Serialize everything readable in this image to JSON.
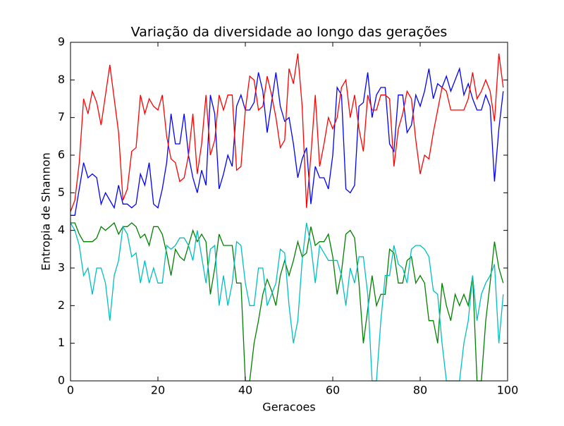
{
  "chart_data": {
    "type": "line",
    "title": "Variação da diversidade ao longo das gerações",
    "x_label": "Geracoes",
    "y_label": "Entropia de Shannon",
    "x": [
      0,
      1,
      2,
      3,
      4,
      5,
      6,
      7,
      8,
      9,
      10,
      11,
      12,
      13,
      14,
      15,
      16,
      17,
      18,
      19,
      20,
      21,
      22,
      23,
      24,
      25,
      26,
      27,
      28,
      29,
      30,
      31,
      32,
      33,
      34,
      35,
      36,
      37,
      38,
      39,
      40,
      41,
      42,
      43,
      44,
      45,
      46,
      47,
      48,
      49,
      50,
      51,
      52,
      53,
      54,
      55,
      56,
      57,
      58,
      59,
      60,
      61,
      62,
      63,
      64,
      65,
      66,
      67,
      68,
      69,
      70,
      71,
      72,
      73,
      74,
      75,
      76,
      77,
      78,
      79,
      80,
      81,
      82,
      83,
      84,
      85,
      86,
      87,
      88,
      89,
      90,
      91,
      92,
      93,
      94,
      95,
      96,
      97,
      98,
      99
    ],
    "series": [
      {
        "color": "#0000ff",
        "values": [
          4.4,
          4.4,
          5.1,
          5.8,
          5.4,
          5.5,
          5.4,
          4.7,
          5.0,
          4.8,
          4.6,
          5.2,
          4.7,
          4.7,
          4.6,
          4.7,
          5.5,
          5.2,
          5.8,
          4.7,
          4.6,
          5.1,
          5.8,
          7.1,
          6.3,
          6.3,
          7.1,
          6.0,
          5.4,
          5.0,
          5.6,
          5.2,
          7.6,
          7.1,
          5.1,
          5.5,
          6.0,
          5.7,
          7.3,
          7.6,
          7.2,
          7.2,
          7.4,
          8.2,
          7.7,
          6.6,
          7.4,
          8.2,
          7.3,
          6.9,
          7.0,
          6.3,
          5.4,
          5.9,
          6.2,
          4.7,
          5.7,
          5.4,
          5.4,
          5.1,
          6.0,
          7.8,
          7.6,
          5.1,
          5.0,
          5.2,
          7.3,
          7.4,
          8.2,
          7.0,
          7.6,
          7.8,
          7.8,
          6.3,
          6.1,
          7.6,
          7.6,
          6.6,
          6.8,
          7.6,
          7.3,
          7.7,
          8.3,
          7.5,
          7.9,
          7.8,
          8.1,
          7.7,
          8.0,
          8.3,
          7.6,
          7.9,
          7.5,
          7.2,
          7.2,
          7.6,
          7.3,
          5.3,
          6.7,
          7.7
        ]
      },
      {
        "color": "#ff0000",
        "values": [
          4.5,
          4.8,
          5.8,
          7.5,
          7.1,
          7.7,
          7.4,
          6.8,
          7.6,
          8.4,
          7.5,
          6.6,
          4.8,
          5.1,
          6.1,
          6.2,
          7.6,
          7.1,
          7.5,
          7.3,
          7.2,
          7.6,
          6.5,
          5.9,
          5.8,
          5.3,
          5.4,
          6.0,
          7.1,
          5.5,
          6.3,
          7.6,
          6.0,
          6.4,
          7.6,
          7.2,
          7.6,
          7.6,
          5.6,
          5.7,
          7.2,
          8.1,
          8.0,
          7.2,
          7.3,
          8.1,
          7.6,
          7.0,
          6.2,
          6.4,
          8.3,
          7.9,
          8.7,
          7.3,
          4.6,
          6.0,
          7.6,
          5.7,
          6.3,
          7.0,
          6.7,
          7.0,
          7.8,
          8.0,
          7.0,
          7.6,
          6.7,
          6.1,
          7.6,
          7.2,
          7.2,
          7.6,
          7.6,
          7.5,
          5.7,
          6.7,
          7.1,
          7.7,
          7.5,
          6.4,
          5.5,
          6.0,
          5.9,
          6.6,
          7.2,
          7.8,
          7.7,
          7.2,
          7.2,
          7.2,
          7.2,
          7.5,
          8.2,
          7.5,
          7.7,
          8.0,
          7.7,
          6.9,
          8.7,
          7.8
        ]
      },
      {
        "color": "#008000",
        "values": [
          4.2,
          4.2,
          3.9,
          3.7,
          3.7,
          3.7,
          3.8,
          4.1,
          4.0,
          4.1,
          4.2,
          3.9,
          4.1,
          4.1,
          4.2,
          4.1,
          3.8,
          3.9,
          3.6,
          4.1,
          4.1,
          3.9,
          3.4,
          2.8,
          3.5,
          3.3,
          3.2,
          3.6,
          4.0,
          3.7,
          3.9,
          3.7,
          2.3,
          3.0,
          3.9,
          3.6,
          3.6,
          3.6,
          2.6,
          2.6,
          0,
          0,
          1.0,
          1.6,
          2.3,
          2.7,
          2.4,
          2.0,
          2.8,
          3.2,
          2.8,
          3.2,
          3.7,
          3.3,
          3.4,
          4.1,
          3.6,
          3.7,
          3.7,
          3.9,
          3.3,
          2.3,
          2.9,
          3.9,
          4.0,
          3.8,
          2.6,
          1.0,
          1.9,
          2.8,
          2.0,
          2.3,
          2.3,
          3.5,
          3.4,
          2.6,
          2.6,
          3.2,
          3.3,
          2.6,
          2.8,
          2.6,
          1.6,
          1.6,
          1.0,
          2.6,
          2.0,
          1.6,
          2.3,
          2.0,
          2.3,
          2.0,
          2.8,
          0,
          0,
          1.6,
          2.6,
          3.7,
          3.0,
          2.6
        ]
      },
      {
        "color": "#00bfbf",
        "values": [
          4.2,
          4.0,
          3.6,
          2.8,
          3.0,
          2.3,
          3.0,
          3.0,
          2.6,
          1.6,
          2.8,
          3.2,
          4.1,
          3.9,
          3.3,
          3.4,
          2.6,
          3.2,
          2.6,
          3.0,
          2.6,
          2.6,
          3.6,
          3.5,
          3.6,
          3.8,
          3.8,
          3.6,
          3.2,
          4.0,
          3.3,
          2.6,
          3.5,
          3.6,
          2.0,
          2.8,
          2.0,
          2.6,
          3.7,
          3.6,
          2.6,
          2.0,
          2.0,
          3.0,
          3.0,
          2.0,
          2.3,
          2.6,
          3.5,
          3.4,
          2.0,
          1.0,
          1.6,
          3.2,
          4.2,
          3.6,
          2.6,
          3.6,
          3.4,
          3.2,
          3.2,
          3.2,
          2.8,
          2.0,
          3.0,
          2.6,
          3.3,
          3.3,
          2.3,
          0,
          0,
          1.6,
          2.8,
          2.8,
          3.6,
          3.1,
          3.0,
          2.6,
          3.5,
          3.6,
          3.6,
          3.5,
          3.3,
          2.4,
          2.3,
          1.0,
          0,
          0,
          0,
          0,
          1.0,
          1.6,
          2.8,
          1.6,
          2.3,
          2.6,
          2.8,
          3.1,
          1.0,
          2.3
        ]
      }
    ],
    "xlim": [
      0,
      100
    ],
    "xticks": [
      0,
      20,
      40,
      60,
      80,
      100
    ],
    "ylim": [
      0,
      9
    ],
    "yticks": [
      0,
      1,
      2,
      3,
      4,
      5,
      6,
      7,
      8,
      9
    ],
    "grid": false
  }
}
